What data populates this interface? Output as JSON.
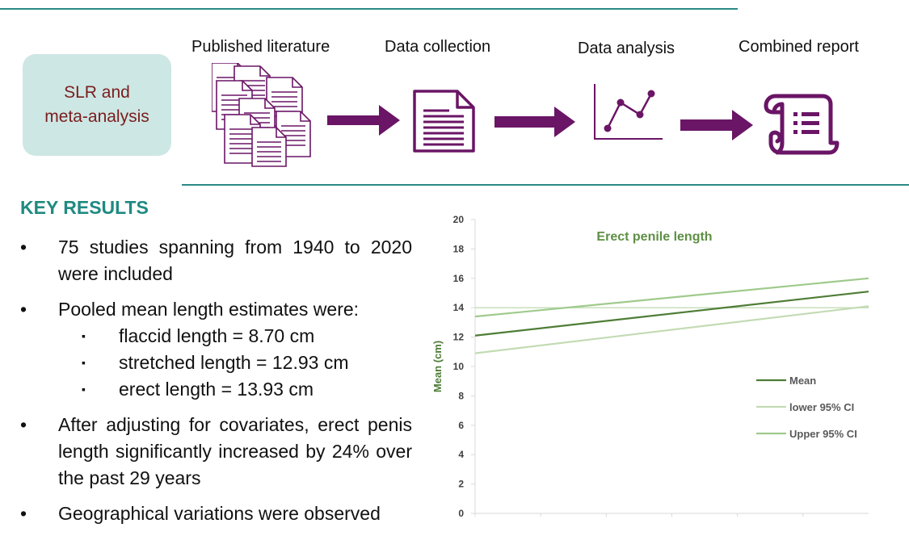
{
  "header": {
    "slr_box": [
      "SLR and",
      "meta-analysis"
    ],
    "steps": [
      {
        "label": "Published literature",
        "icon": "documents-stack-icon"
      },
      {
        "label": "Data collection",
        "icon": "document-icon"
      },
      {
        "label": "Data analysis",
        "icon": "line-graph-icon"
      },
      {
        "label": "Combined report",
        "icon": "scroll-icon"
      }
    ],
    "arrow_color": "#6a1566",
    "rule_color": "#2a8a86"
  },
  "key_results": {
    "title": "KEY RESULTS",
    "bullets": [
      {
        "marker": "•",
        "text": "75 studies spanning from 1940 to 2020 were included"
      },
      {
        "marker": "•",
        "text": "Pooled mean length estimates were:",
        "sub": [
          {
            "marker": "▪",
            "text": "flaccid length = 8.70 cm"
          },
          {
            "marker": "▪",
            "text": "stretched length = 12.93 cm"
          },
          {
            "marker": "▪",
            "text": "erect length = 13.93 cm"
          }
        ]
      },
      {
        "marker": "•",
        "text": "After adjusting for covariates, erect penis length significantly increased by 24% over the past 29 years"
      },
      {
        "marker": "•",
        "text": "Geographical variations were observed"
      }
    ]
  },
  "chart_data": {
    "type": "line",
    "title": "Erect penile length",
    "ylabel": "Mean (cm)",
    "xlabel": "",
    "ylim": [
      0,
      20
    ],
    "yticks": [
      0,
      2,
      4,
      6,
      8,
      10,
      12,
      14,
      16,
      18,
      20
    ],
    "x": [
      0,
      1
    ],
    "legend_position": "right",
    "series": [
      {
        "name": "Mean",
        "values": [
          12.1,
          15.1
        ],
        "color": "#4e7d36"
      },
      {
        "name": "lower 95% CI",
        "values": [
          10.9,
          14.1
        ],
        "color": "#c3dbb4"
      },
      {
        "name": "Upper 95% CI",
        "values": [
          13.4,
          16.0
        ],
        "color": "#9fca8c"
      }
    ],
    "flat_line": {
      "value": 14.0,
      "color": "#c9dfbd"
    }
  }
}
